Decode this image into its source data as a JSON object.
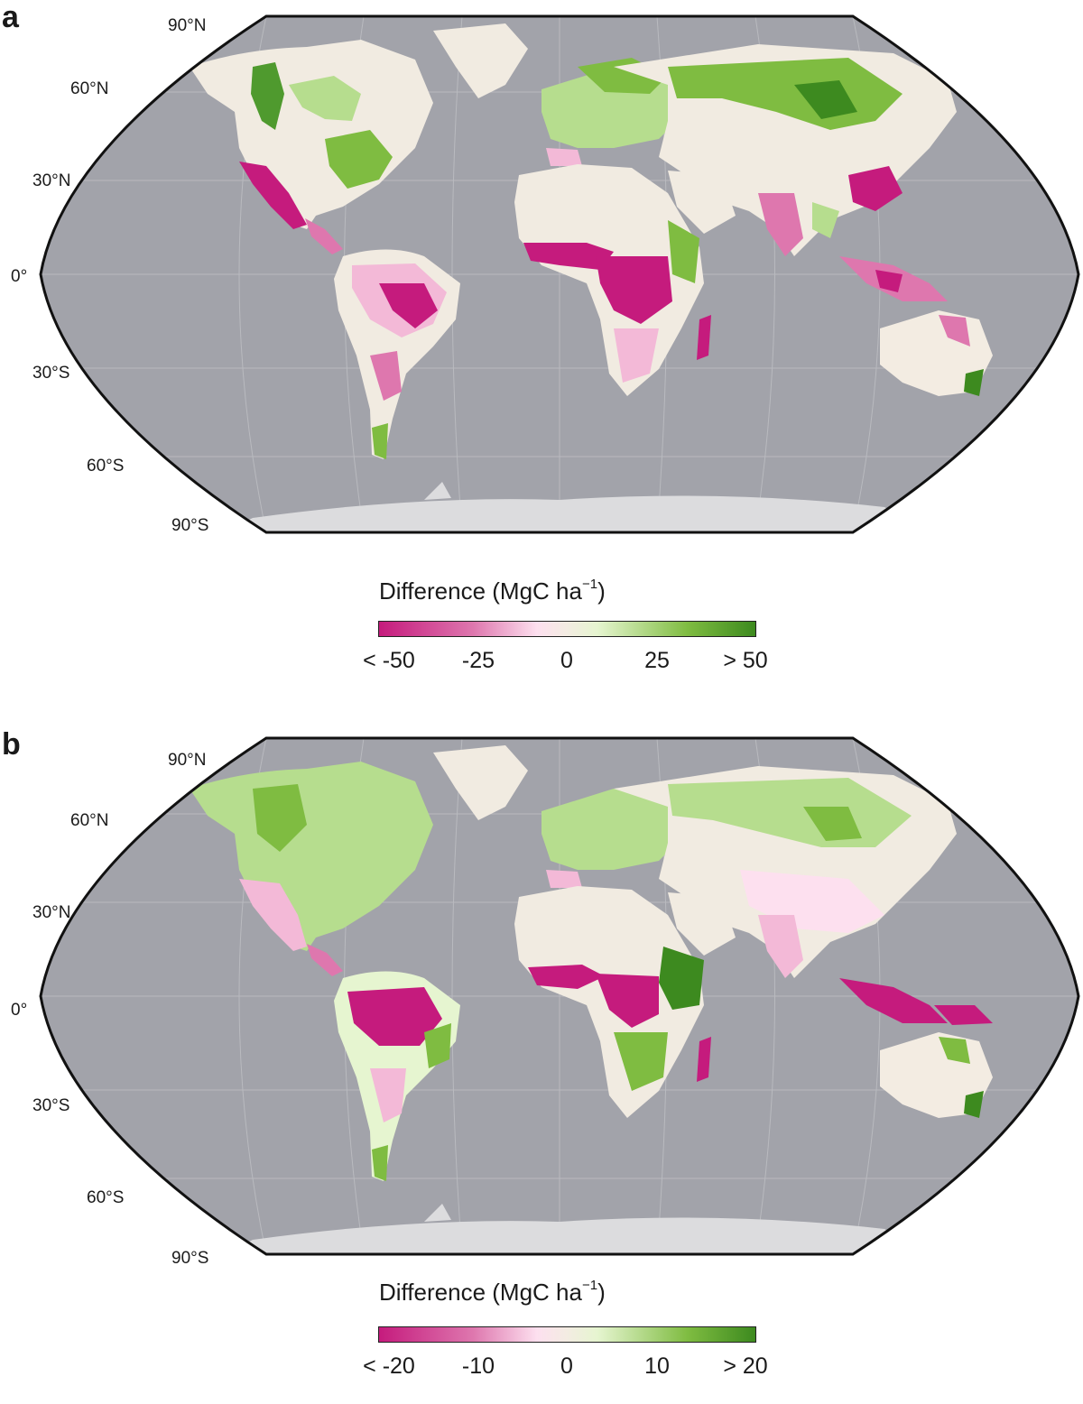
{
  "panels": [
    {
      "letter": "a",
      "lat_labels": [
        "90°N",
        "60°N",
        "30°N",
        "0°",
        "30°S",
        "60°S",
        "90°S"
      ],
      "legend": {
        "title": "Difference  (MgC ha",
        "title_sup": "−1",
        "title_end": ")",
        "ticks": [
          "< -50",
          "-25",
          "0",
          "25",
          "> 50"
        ]
      }
    },
    {
      "letter": "b",
      "lat_labels": [
        "90°N",
        "60°N",
        "30°N",
        "0°",
        "30°S",
        "60°S",
        "90°S"
      ],
      "legend": {
        "title": "Difference  (MgC ha",
        "title_sup": "−1",
        "title_end": ")",
        "ticks": [
          "< -20",
          "-10",
          "0",
          "10",
          "> 20"
        ]
      }
    }
  ],
  "colors": {
    "ocean": "#a2a3aa",
    "graticule": "#b9babf",
    "land_neutral": "#f1ebe1",
    "antarctica": "#dcdcde",
    "scale_low": "#c51b7d",
    "scale_mid_low": "#de77ae",
    "scale_mid": "#f3ece2",
    "scale_mid_high": "#7fbc41",
    "scale_high": "#3d8a1f"
  }
}
